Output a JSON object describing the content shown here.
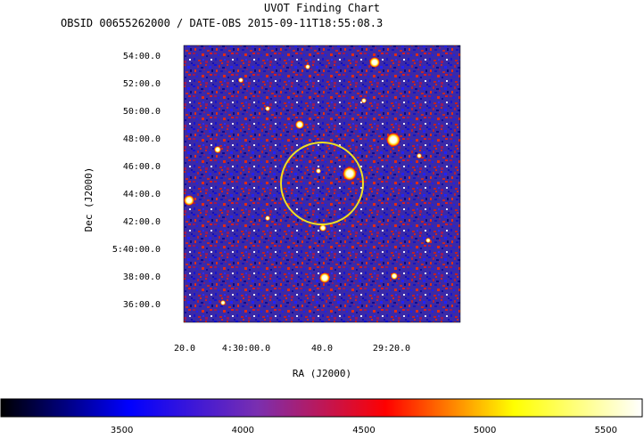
{
  "title": "UVOT Finding Chart",
  "subtitle": "OBSID 00655262000 / DATE-OBS 2015-09-11T18:55:08.3",
  "chart_data": {
    "type": "heatmap",
    "xlabel": "RA (J2000)",
    "ylabel": "Dec (J2000)",
    "x_ticks": [
      "20.0",
      "4:30:00.0",
      "40.0",
      "29:20.0"
    ],
    "y_ticks": [
      "54:00.0",
      "52:00.0",
      "50:00.0",
      "48:00.0",
      "46:00.0",
      "44:00.0",
      "42:00.0",
      "5:40:00.0",
      "38:00.0",
      "36:00.0"
    ],
    "colorbar": {
      "ticks": [
        3500,
        4000,
        4500,
        5000,
        5500
      ],
      "range": [
        3000,
        5650
      ],
      "colors": [
        "#000000",
        "#0000ff",
        "#7a2fb0",
        "#ff0000",
        "#ffff00",
        "#ffffff"
      ]
    },
    "circle_color": "#f0e020"
  }
}
